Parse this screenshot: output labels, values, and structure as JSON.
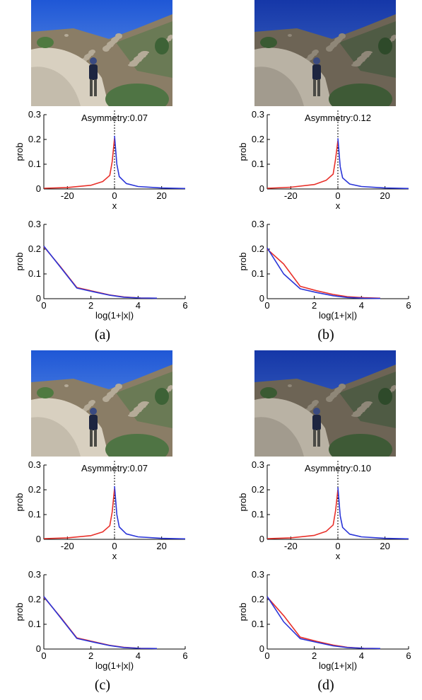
{
  "panels": [
    {
      "caption": "(a)",
      "photo_variant": "bright",
      "charts": [
        {
          "type": "line",
          "xlabel": "x",
          "ylabel": "prob",
          "xlim": [
            -30,
            30
          ],
          "ylim": [
            0,
            0.3
          ],
          "xticks": [
            -20,
            0,
            20
          ],
          "yticks": [
            0,
            0.1,
            0.2,
            0.3
          ],
          "annotation": "Asymmetry:0.07",
          "reference_line_x": 0,
          "series": [
            {
              "color": "#e8302a",
              "x": [
                -30,
                -20,
                -10,
                -5,
                -2,
                -1,
                0
              ],
              "y": [
                0.003,
                0.006,
                0.015,
                0.03,
                0.055,
                0.11,
                0.205
              ]
            },
            {
              "color": "#2a35d8",
              "x": [
                0,
                1,
                2,
                5,
                10,
                20,
                30
              ],
              "y": [
                0.215,
                0.1,
                0.05,
                0.022,
                0.01,
                0.004,
                0.002
              ]
            }
          ]
        },
        {
          "type": "line",
          "xlabel": "log(1+|x|)",
          "ylabel": "prob",
          "xlim": [
            0,
            6
          ],
          "ylim": [
            0,
            0.3
          ],
          "xticks": [
            0,
            2,
            4,
            6
          ],
          "yticks": [
            0,
            0.1,
            0.2,
            0.3
          ],
          "series": [
            {
              "color": "#e8302a",
              "x": [
                0,
                0.7,
                1.4,
                2.1,
                2.8,
                3.4,
                4.1,
                4.8
              ],
              "y": [
                0.21,
                0.13,
                0.045,
                0.03,
                0.015,
                0.007,
                0.003,
                0.002
              ]
            },
            {
              "color": "#2a35d8",
              "x": [
                0,
                0.7,
                1.4,
                2.1,
                2.8,
                3.4,
                4.1,
                4.8
              ],
              "y": [
                0.212,
                0.128,
                0.043,
                0.028,
                0.014,
                0.006,
                0.003,
                0.002
              ]
            }
          ]
        }
      ]
    },
    {
      "caption": "(b)",
      "photo_variant": "dark",
      "charts": [
        {
          "type": "line",
          "xlabel": "x",
          "ylabel": "prob",
          "xlim": [
            -30,
            30
          ],
          "ylim": [
            0,
            0.3
          ],
          "xticks": [
            -20,
            0,
            20
          ],
          "yticks": [
            0,
            0.1,
            0.2,
            0.3
          ],
          "annotation": "Asymmetry:0.12",
          "reference_line_x": 0,
          "series": [
            {
              "color": "#e8302a",
              "x": [
                -30,
                -20,
                -10,
                -5,
                -2,
                -1,
                0
              ],
              "y": [
                0.003,
                0.007,
                0.018,
                0.035,
                0.06,
                0.12,
                0.195
              ]
            },
            {
              "color": "#2a35d8",
              "x": [
                0,
                1,
                2,
                5,
                10,
                20,
                30
              ],
              "y": [
                0.205,
                0.09,
                0.045,
                0.02,
                0.01,
                0.004,
                0.002
              ]
            }
          ]
        },
        {
          "type": "line",
          "xlabel": "log(1+|x|)",
          "ylabel": "prob",
          "xlim": [
            0,
            6
          ],
          "ylim": [
            0,
            0.3
          ],
          "xticks": [
            0,
            2,
            4,
            6
          ],
          "yticks": [
            0,
            0.1,
            0.2,
            0.3
          ],
          "series": [
            {
              "color": "#e8302a",
              "x": [
                0,
                0.7,
                1.4,
                2.1,
                2.8,
                3.4,
                4.1,
                4.8
              ],
              "y": [
                0.2,
                0.14,
                0.05,
                0.032,
                0.017,
                0.008,
                0.004,
                0.002
              ]
            },
            {
              "color": "#2a35d8",
              "x": [
                0,
                0.7,
                1.4,
                2.1,
                2.8,
                3.4,
                4.1,
                4.8
              ],
              "y": [
                0.205,
                0.1,
                0.04,
                0.025,
                0.012,
                0.005,
                0.002,
                0.001
              ]
            }
          ]
        }
      ]
    },
    {
      "caption": "(c)",
      "photo_variant": "bright",
      "charts": [
        {
          "type": "line",
          "xlabel": "x",
          "ylabel": "prob",
          "xlim": [
            -30,
            30
          ],
          "ylim": [
            0,
            0.3
          ],
          "xticks": [
            -20,
            0,
            20
          ],
          "yticks": [
            0,
            0.1,
            0.2,
            0.3
          ],
          "annotation": "Asymmetry:0.07",
          "reference_line_x": 0,
          "series": [
            {
              "color": "#e8302a",
              "x": [
                -30,
                -20,
                -10,
                -5,
                -2,
                -1,
                0
              ],
              "y": [
                0.003,
                0.006,
                0.015,
                0.03,
                0.055,
                0.11,
                0.205
              ]
            },
            {
              "color": "#2a35d8",
              "x": [
                0,
                1,
                2,
                5,
                10,
                20,
                30
              ],
              "y": [
                0.215,
                0.1,
                0.05,
                0.022,
                0.01,
                0.004,
                0.002
              ]
            }
          ]
        },
        {
          "type": "line",
          "xlabel": "log(1+|x|)",
          "ylabel": "prob",
          "xlim": [
            0,
            6
          ],
          "ylim": [
            0,
            0.3
          ],
          "xticks": [
            0,
            2,
            4,
            6
          ],
          "yticks": [
            0,
            0.1,
            0.2,
            0.3
          ],
          "series": [
            {
              "color": "#e8302a",
              "x": [
                0,
                0.7,
                1.4,
                2.1,
                2.8,
                3.4,
                4.1,
                4.8
              ],
              "y": [
                0.21,
                0.13,
                0.045,
                0.03,
                0.015,
                0.007,
                0.003,
                0.002
              ]
            },
            {
              "color": "#2a35d8",
              "x": [
                0,
                0.7,
                1.4,
                2.1,
                2.8,
                3.4,
                4.1,
                4.8
              ],
              "y": [
                0.212,
                0.128,
                0.043,
                0.028,
                0.014,
                0.006,
                0.003,
                0.002
              ]
            }
          ]
        }
      ]
    },
    {
      "caption": "(d)",
      "photo_variant": "dark",
      "charts": [
        {
          "type": "line",
          "xlabel": "x",
          "ylabel": "prob",
          "xlim": [
            -30,
            30
          ],
          "ylim": [
            0,
            0.3
          ],
          "xticks": [
            -20,
            0,
            20
          ],
          "yticks": [
            0,
            0.1,
            0.2,
            0.3
          ],
          "annotation": "Asymmetry:0.10",
          "reference_line_x": 0,
          "series": [
            {
              "color": "#e8302a",
              "x": [
                -30,
                -20,
                -10,
                -5,
                -2,
                -1,
                0
              ],
              "y": [
                0.003,
                0.006,
                0.016,
                0.032,
                0.058,
                0.115,
                0.2
              ]
            },
            {
              "color": "#2a35d8",
              "x": [
                0,
                1,
                2,
                5,
                10,
                20,
                30
              ],
              "y": [
                0.21,
                0.095,
                0.048,
                0.021,
                0.01,
                0.004,
                0.002
              ]
            }
          ]
        },
        {
          "type": "line",
          "xlabel": "log(1+|x|)",
          "ylabel": "prob",
          "xlim": [
            0,
            6
          ],
          "ylim": [
            0,
            0.3
          ],
          "xticks": [
            0,
            2,
            4,
            6
          ],
          "yticks": [
            0,
            0.1,
            0.2,
            0.3
          ],
          "series": [
            {
              "color": "#e8302a",
              "x": [
                0,
                0.7,
                1.4,
                2.1,
                2.8,
                3.4,
                4.1,
                4.8
              ],
              "y": [
                0.21,
                0.135,
                0.048,
                0.031,
                0.016,
                0.007,
                0.003,
                0.002
              ]
            },
            {
              "color": "#2a35d8",
              "x": [
                0,
                0.7,
                1.4,
                2.1,
                2.8,
                3.4,
                4.1,
                4.8
              ],
              "y": [
                0.212,
                0.11,
                0.042,
                0.027,
                0.013,
                0.006,
                0.003,
                0.002
              ]
            }
          ]
        }
      ]
    }
  ]
}
